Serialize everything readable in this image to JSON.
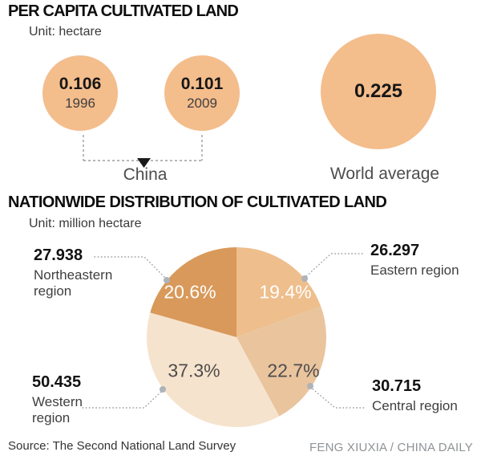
{
  "footer": {
    "source": "Source: The Second National Land Survey",
    "credit": "FENG XIUXIA / CHINA DAILY"
  },
  "palette": {
    "bubble_fill": "#F4BD8C",
    "leader_dot": "#ADB3B9",
    "leader_line": "#9BA1A6",
    "bracket_line": "#8C8C8C",
    "title_text": "#0D0D0D",
    "muted_text": "#4D4D4D"
  },
  "chart_data": [
    {
      "type": "bubble",
      "title": "PER CAPITA CULTIVATED LAND",
      "unit_label": "Unit: hectare",
      "points": [
        {
          "group": "China",
          "year": "1996",
          "value": 0.106,
          "value_label": "0.106"
        },
        {
          "group": "China",
          "year": "2009",
          "value": 0.101,
          "value_label": "0.101"
        },
        {
          "group": "World average",
          "value": 0.225,
          "value_label": "0.225"
        }
      ],
      "group_labels": {
        "china": "China",
        "world": "World average"
      }
    },
    {
      "type": "pie",
      "title": "NATIONWIDE DISTRIBUTION OF CULTIVATED LAND",
      "unit_label": "Unit: million hectare",
      "slice_order": "clockwise from 12 o'clock",
      "slices": [
        {
          "name": "Eastern region",
          "value": 26.297,
          "value_label": "26.297",
          "pct": 19.4,
          "pct_label": "19.4%",
          "color": "#EEBE8C",
          "pct_text_color": "#FFFFFF"
        },
        {
          "name": "Central region",
          "value": 30.715,
          "value_label": "30.715",
          "pct": 22.7,
          "pct_label": "22.7%",
          "color": "#E9C49D",
          "pct_text_color": "#4D4D4D"
        },
        {
          "name": "Western region",
          "value": 50.435,
          "value_label": "50.435",
          "pct": 37.3,
          "pct_label": "37.3%",
          "color": "#F6E3CD",
          "pct_text_color": "#4D4D4D"
        },
        {
          "name": "Northeastern region",
          "value": 27.938,
          "value_label": "27.938",
          "pct": 20.6,
          "pct_label": "20.6%",
          "color": "#D9995A",
          "pct_text_color": "#FFFFFF"
        }
      ]
    }
  ]
}
